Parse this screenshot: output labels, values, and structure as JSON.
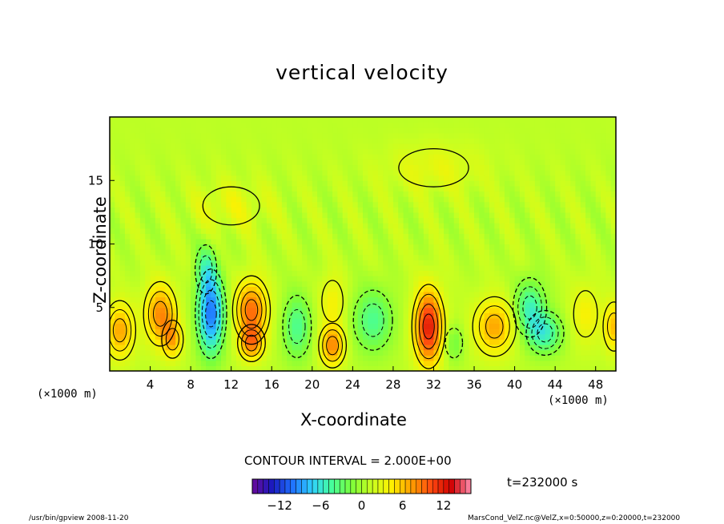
{
  "chart_data": {
    "type": "heatmap",
    "title": "vertical velocity",
    "xlabel": "X-coordinate",
    "ylabel": "Z-coordinate",
    "x_unit": "(×1000 m)",
    "y_unit": "(×1000 m)",
    "xlim": [
      0,
      50
    ],
    "ylim": [
      0,
      20
    ],
    "x_ticks": [
      4,
      8,
      12,
      16,
      20,
      24,
      28,
      32,
      36,
      40,
      44,
      48
    ],
    "y_ticks": [
      5,
      10,
      15
    ],
    "contour_interval": "CONTOUR INTERVAL = 2.000E+00",
    "colorbar": {
      "ticks": [
        -12,
        -6,
        0,
        6,
        12
      ],
      "range": [
        -16,
        16
      ],
      "colors": [
        "#6a0a9a",
        "#1a1abf",
        "#1f6fff",
        "#2fd0ff",
        "#46ff9a",
        "#7cff3a",
        "#c8ff20",
        "#fff000",
        "#ffa000",
        "#ff4a10",
        "#d00000",
        "#ff8fb0"
      ]
    },
    "cells": [
      {
        "x": 1.0,
        "z": 3.2,
        "w": 6,
        "sx": 1.4,
        "sz": 2.2
      },
      {
        "x": 5.0,
        "z": 4.5,
        "w": 7,
        "sx": 1.5,
        "sz": 2.4
      },
      {
        "x": 6.2,
        "z": 2.5,
        "w": 5,
        "sx": 1.0,
        "sz": 1.5
      },
      {
        "x": 10.0,
        "z": 4.5,
        "w": -11,
        "sx": 1.3,
        "sz": 3.2
      },
      {
        "x": 9.5,
        "z": 8.0,
        "w": -4,
        "sx": 1.0,
        "sz": 2.0
      },
      {
        "x": 14.0,
        "z": 4.8,
        "w": 8,
        "sx": 1.6,
        "sz": 2.4
      },
      {
        "x": 14.0,
        "z": 2.2,
        "w": 6,
        "sx": 1.2,
        "sz": 1.3
      },
      {
        "x": 18.5,
        "z": 3.5,
        "w": -5,
        "sx": 1.4,
        "sz": 2.6
      },
      {
        "x": 22.0,
        "z": 2.0,
        "w": 7,
        "sx": 1.2,
        "sz": 1.6
      },
      {
        "x": 22.0,
        "z": 5.5,
        "w": 3,
        "sx": 1.3,
        "sz": 2.2
      },
      {
        "x": 26.0,
        "z": 4.0,
        "w": -5,
        "sx": 2.0,
        "sz": 2.5
      },
      {
        "x": 31.5,
        "z": 3.5,
        "w": 11,
        "sx": 1.4,
        "sz": 3.0
      },
      {
        "x": 34.0,
        "z": 2.2,
        "w": -3,
        "sx": 1.0,
        "sz": 1.5
      },
      {
        "x": 38.0,
        "z": 3.5,
        "w": 6,
        "sx": 2.0,
        "sz": 2.2
      },
      {
        "x": 41.5,
        "z": 5.0,
        "w": -6,
        "sx": 1.5,
        "sz": 2.2
      },
      {
        "x": 43.0,
        "z": 3.0,
        "w": -6,
        "sx": 1.7,
        "sz": 1.6
      },
      {
        "x": 47.0,
        "z": 4.5,
        "w": 3,
        "sx": 1.5,
        "sz": 2.5
      },
      {
        "x": 49.8,
        "z": 3.5,
        "w": 5,
        "sx": 1.0,
        "sz": 2.0
      },
      {
        "x": 12.0,
        "z": 13.0,
        "w": 2,
        "sx": 4.0,
        "sz": 2.0
      },
      {
        "x": 32.0,
        "z": 16.0,
        "w": 2,
        "sx": 5.0,
        "sz": 2.0
      }
    ],
    "time_label": "t=232000  s"
  },
  "footer": {
    "left": "/usr/bin/gpview   2008-11-20",
    "right": "MarsCond_VelZ.nc@VelZ,x=0:50000,z=0:20000,t=232000"
  }
}
